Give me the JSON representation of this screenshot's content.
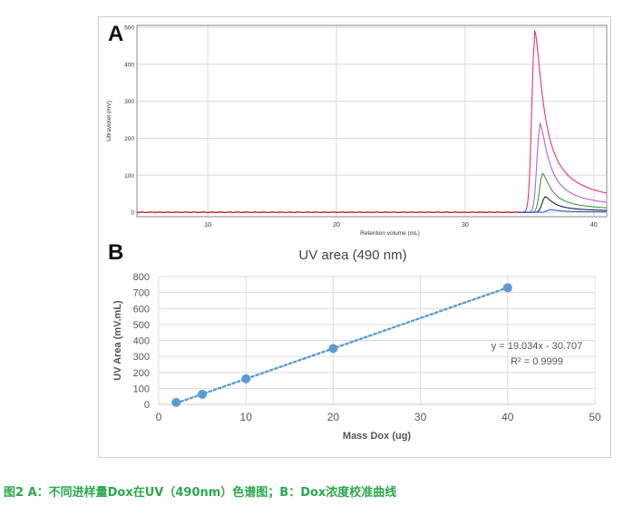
{
  "chart_data": [
    {
      "id": "A",
      "type": "line",
      "panel_label": "A",
      "xlabel": "Retention volume (mL)",
      "ylabel": "Ultraviolet (mV)",
      "xlim": [
        4.5,
        41
      ],
      "ylim": [
        -12,
        505
      ],
      "xticks": [
        10,
        20,
        30,
        40
      ],
      "yticks": [
        0,
        100,
        200,
        300,
        400,
        500
      ],
      "grid": true,
      "baseline_color": "#c81e3c",
      "series": [
        {
          "color": "#e8336f",
          "peak_x": 35.4,
          "peak_y": 490
        },
        {
          "color": "#b35fd6",
          "peak_x": 35.8,
          "peak_y": 240
        },
        {
          "color": "#3e9a43",
          "peak_x": 36.0,
          "peak_y": 105
        },
        {
          "color": "#222222",
          "peak_x": 36.2,
          "peak_y": 42
        },
        {
          "color": "#2c55d9",
          "peak_x": 36.6,
          "peak_y": 7
        }
      ]
    },
    {
      "id": "B",
      "type": "scatter",
      "panel_label": "B",
      "title": "UV area (490 nm)",
      "xlabel": "Mass Dox (ug)",
      "ylabel": "UV Area (mV.mL)",
      "xlim": [
        0,
        50
      ],
      "ylim": [
        0,
        800
      ],
      "xticks": [
        0,
        10,
        20,
        30,
        40,
        50
      ],
      "yticks": [
        0,
        100,
        200,
        300,
        400,
        500,
        600,
        700,
        800
      ],
      "grid": true,
      "marker_color": "#5b9bd5",
      "points": [
        {
          "x": 2,
          "y": 12
        },
        {
          "x": 5,
          "y": 63
        },
        {
          "x": 10,
          "y": 160
        },
        {
          "x": 20,
          "y": 350
        },
        {
          "x": 40,
          "y": 730
        }
      ],
      "trendline": {
        "slope": 19.034,
        "intercept": -30.707,
        "style": "dotted"
      },
      "equation": "y = 19.034x - 30.707",
      "r_squared": "R² = 0.9999"
    }
  ],
  "caption": "图2 A：不同进样量Dox在UV（490nm）色谱图；B：Dox浓度校准曲线"
}
